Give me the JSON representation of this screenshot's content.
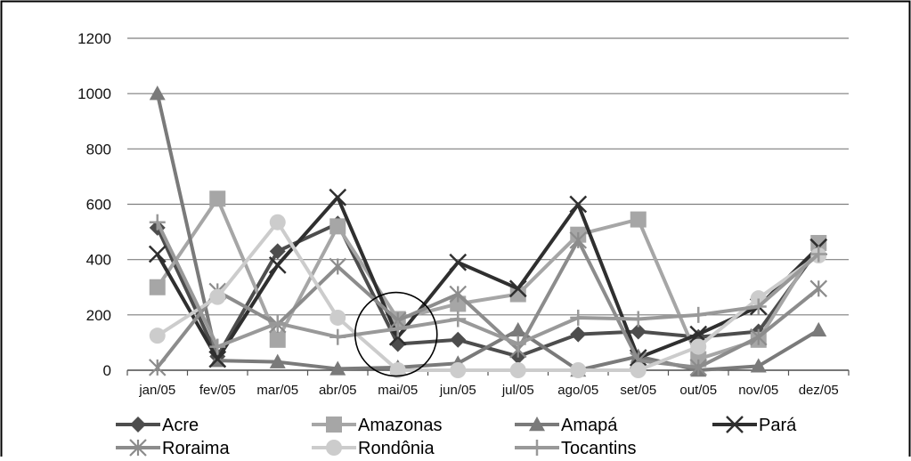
{
  "chart_data": {
    "type": "line",
    "title": "",
    "xlabel": "",
    "ylabel": "",
    "ylim": [
      0,
      1200
    ],
    "yticks": [
      0,
      200,
      400,
      600,
      800,
      1000,
      1200
    ],
    "grid": "horizontal",
    "legend_position": "bottom",
    "categories": [
      "jan/05",
      "fev/05",
      "mar/05",
      "abr/05",
      "mai/05",
      "jun/05",
      "jul/05",
      "ago/05",
      "set/05",
      "out/05",
      "nov/05",
      "dez/05"
    ],
    "annotation": "circle around mai/05 values",
    "series": [
      {
        "name": "Acre",
        "color": "#4d4d4d",
        "marker": "diamond",
        "values": [
          515,
          50,
          430,
          530,
          95,
          110,
          50,
          130,
          140,
          120,
          140,
          440
        ]
      },
      {
        "name": "Amazonas",
        "color": "#a6a6a6",
        "marker": "square",
        "values": [
          300,
          620,
          110,
          520,
          185,
          240,
          275,
          490,
          545,
          40,
          110,
          460
        ]
      },
      {
        "name": "Amapá",
        "color": "#7a7a7a",
        "marker": "triangle",
        "values": [
          1000,
          35,
          30,
          5,
          10,
          25,
          145,
          0,
          50,
          0,
          15,
          145
        ]
      },
      {
        "name": "Pará",
        "color": "#2f2f2f",
        "marker": "x",
        "values": [
          420,
          40,
          380,
          625,
          120,
          390,
          295,
          600,
          45,
          130,
          230,
          445
        ]
      },
      {
        "name": "Roraima",
        "color": "#8c8c8c",
        "marker": "asterisk",
        "values": [
          10,
          285,
          165,
          375,
          180,
          275,
          75,
          470,
          35,
          10,
          120,
          295
        ]
      },
      {
        "name": "Rondônia",
        "color": "#cccccc",
        "marker": "circle",
        "values": [
          125,
          265,
          535,
          190,
          0,
          0,
          0,
          0,
          0,
          85,
          260,
          415
        ]
      },
      {
        "name": "Tocantins",
        "color": "#999999",
        "marker": "plus",
        "values": [
          535,
          85,
          170,
          120,
          150,
          185,
          95,
          190,
          185,
          200,
          230,
          420
        ]
      }
    ]
  }
}
